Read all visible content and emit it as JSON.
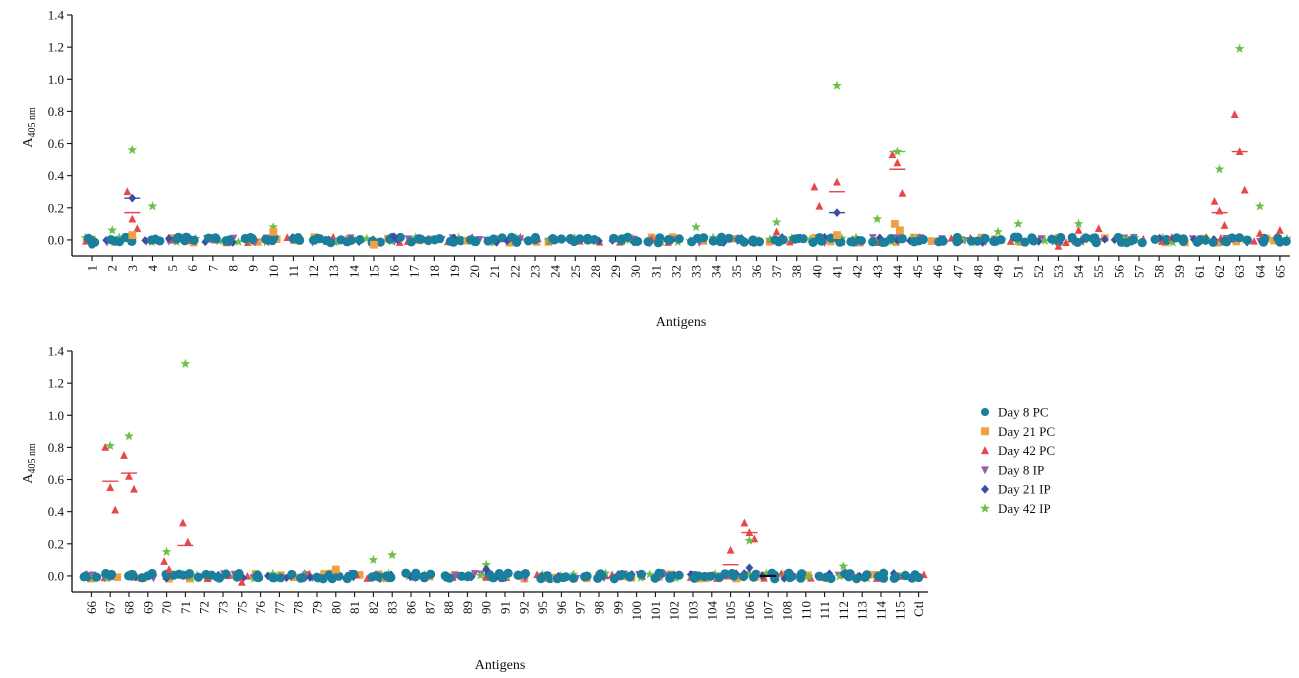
{
  "chart_data": [
    {
      "type": "scatter",
      "panel": "top",
      "xlabel": "Antigens",
      "ylabel_main": "A",
      "ylabel_sub": "405 nm",
      "ylim": [
        -0.1,
        1.4
      ],
      "yticks": [
        "0.0",
        "0.2",
        "0.4",
        "0.6",
        "0.8",
        "1.0",
        "1.2",
        "1.4"
      ],
      "categories": [
        "1",
        "2",
        "3",
        "4",
        "5",
        "6",
        "7",
        "8",
        "9",
        "10",
        "11",
        "12",
        "13",
        "14",
        "15",
        "16",
        "17",
        "18",
        "19",
        "20",
        "21",
        "22",
        "23",
        "24",
        "25",
        "28",
        "29",
        "30",
        "31",
        "32",
        "33",
        "34",
        "35",
        "36",
        "37",
        "38",
        "40",
        "41",
        "42",
        "43",
        "44",
        "45",
        "46",
        "47",
        "48",
        "49",
        "51",
        "52",
        "53",
        "54",
        "55",
        "56",
        "57",
        "58",
        "59",
        "61",
        "62",
        "63",
        "64",
        "65"
      ],
      "baseline_value": 0.0,
      "highlights": [
        {
          "category": "1",
          "series": "Day 8 PC",
          "values": [
            -0.03
          ]
        },
        {
          "category": "3",
          "series": "Day 42 IP",
          "values": [
            0.56
          ]
        },
        {
          "category": "3",
          "series": "Day 42 PC",
          "values": [
            0.3,
            0.13,
            0.07
          ]
        },
        {
          "category": "3",
          "series": "Day 21 IP",
          "values": [
            0.26
          ]
        },
        {
          "category": "3",
          "series": "Day 21 PC",
          "values": [
            0.03
          ]
        },
        {
          "category": "2",
          "series": "Day 42 IP",
          "values": [
            0.06
          ]
        },
        {
          "category": "4",
          "series": "Day 42 IP",
          "values": [
            0.21
          ]
        },
        {
          "category": "10",
          "series": "Day 42 IP",
          "values": [
            0.08
          ]
        },
        {
          "category": "10",
          "series": "Day 21 PC",
          "values": [
            0.05
          ]
        },
        {
          "category": "15",
          "series": "Day 21 PC",
          "values": [
            -0.03
          ]
        },
        {
          "category": "16",
          "series": "Day 21 IP",
          "values": [
            0.02
          ]
        },
        {
          "category": "33",
          "series": "Day 42 IP",
          "values": [
            0.08
          ]
        },
        {
          "category": "37",
          "series": "Day 42 IP",
          "values": [
            0.11
          ]
        },
        {
          "category": "37",
          "series": "Day 42 PC",
          "values": [
            0.05
          ]
        },
        {
          "category": "40",
          "series": "Day 42 PC",
          "values": [
            0.33,
            0.21
          ]
        },
        {
          "category": "41",
          "series": "Day 42 IP",
          "values": [
            0.96
          ]
        },
        {
          "category": "41",
          "series": "Day 42 PC",
          "values": [
            0.36
          ]
        },
        {
          "category": "41",
          "series": "Day 21 IP",
          "values": [
            0.17
          ]
        },
        {
          "category": "41",
          "series": "Day 21 PC",
          "values": [
            0.03
          ]
        },
        {
          "category": "43",
          "series": "Day 42 IP",
          "values": [
            0.13
          ]
        },
        {
          "category": "44",
          "series": "Day 42 IP",
          "values": [
            0.55
          ]
        },
        {
          "category": "44",
          "series": "Day 42 PC",
          "values": [
            0.53,
            0.48,
            0.29
          ]
        },
        {
          "category": "44",
          "series": "Day 21 PC",
          "values": [
            0.1,
            0.06
          ]
        },
        {
          "category": "49",
          "series": "Day 42 IP",
          "values": [
            0.05
          ]
        },
        {
          "category": "51",
          "series": "Day 42 IP",
          "values": [
            0.1
          ]
        },
        {
          "category": "53",
          "series": "Day 42 PC",
          "values": [
            -0.04
          ]
        },
        {
          "category": "54",
          "series": "Day 42 IP",
          "values": [
            0.1
          ]
        },
        {
          "category": "54",
          "series": "Day 42 PC",
          "values": [
            0.06
          ]
        },
        {
          "category": "55",
          "series": "Day 42 PC",
          "values": [
            0.07
          ]
        },
        {
          "category": "62",
          "series": "Day 42 IP",
          "values": [
            0.44
          ]
        },
        {
          "category": "62",
          "series": "Day 42 PC",
          "values": [
            0.24,
            0.18,
            0.09
          ]
        },
        {
          "category": "63",
          "series": "Day 42 IP",
          "values": [
            1.19
          ]
        },
        {
          "category": "63",
          "series": "Day 42 PC",
          "values": [
            0.78,
            0.55,
            0.31
          ]
        },
        {
          "category": "64",
          "series": "Day 42 IP",
          "values": [
            0.21
          ]
        },
        {
          "category": "64",
          "series": "Day 42 PC",
          "values": [
            0.04
          ]
        },
        {
          "category": "65",
          "series": "Day 42 PC",
          "values": [
            0.06
          ]
        }
      ],
      "mean_lines": [
        {
          "category": "3",
          "series": "Day 21 IP",
          "value": 0.26
        },
        {
          "category": "3",
          "series": "Day 42 PC",
          "value": 0.17
        },
        {
          "category": "41",
          "series": "Day 42 PC",
          "value": 0.3
        },
        {
          "category": "41",
          "series": "Day 21 IP",
          "value": 0.17
        },
        {
          "category": "44",
          "series": "Day 42 PC",
          "value": 0.44
        },
        {
          "category": "44",
          "series": "Day 42 IP",
          "value": 0.55
        },
        {
          "category": "62",
          "series": "Day 42 PC",
          "value": 0.17
        },
        {
          "category": "63",
          "series": "Day 42 PC",
          "value": 0.55
        }
      ]
    },
    {
      "type": "scatter",
      "panel": "bottom",
      "xlabel": "Antigens",
      "ylabel_main": "A",
      "ylabel_sub": "405 nm",
      "ylim": [
        -0.1,
        1.4
      ],
      "yticks": [
        "0.0",
        "0.2",
        "0.4",
        "0.6",
        "0.8",
        "1.0",
        "1.2",
        "1.4"
      ],
      "categories": [
        "66",
        "67",
        "68",
        "69",
        "70",
        "71",
        "72",
        "73",
        "75",
        "76",
        "77",
        "78",
        "79",
        "80",
        "81",
        "82",
        "83",
        "86",
        "87",
        "88",
        "89",
        "90",
        "91",
        "92",
        "95",
        "96",
        "97",
        "98",
        "99",
        "100",
        "101",
        "102",
        "103",
        "104",
        "105",
        "106",
        "107",
        "108",
        "110",
        "111",
        "112",
        "113",
        "114",
        "115",
        "Ctl"
      ],
      "baseline_value": 0.0,
      "highlights": [
        {
          "category": "67",
          "series": "Day 42 IP",
          "values": [
            0.81
          ]
        },
        {
          "category": "67",
          "series": "Day 42 PC",
          "values": [
            0.8,
            0.55,
            0.41
          ]
        },
        {
          "category": "68",
          "series": "Day 42 IP",
          "values": [
            0.87
          ]
        },
        {
          "category": "68",
          "series": "Day 42 PC",
          "values": [
            0.75,
            0.62,
            0.54
          ]
        },
        {
          "category": "70",
          "series": "Day 42 IP",
          "values": [
            0.15
          ]
        },
        {
          "category": "70",
          "series": "Day 42 PC",
          "values": [
            0.09,
            0.04
          ]
        },
        {
          "category": "71",
          "series": "Day 42 IP",
          "values": [
            1.32
          ]
        },
        {
          "category": "71",
          "series": "Day 42 PC",
          "values": [
            0.33,
            0.21
          ]
        },
        {
          "category": "75",
          "series": "Day 42 PC",
          "values": [
            -0.04
          ]
        },
        {
          "category": "80",
          "series": "Day 21 PC",
          "values": [
            0.04
          ]
        },
        {
          "category": "82",
          "series": "Day 42 IP",
          "values": [
            0.1
          ]
        },
        {
          "category": "83",
          "series": "Day 42 IP",
          "values": [
            0.13
          ]
        },
        {
          "category": "90",
          "series": "Day 42 IP",
          "values": [
            0.07
          ]
        },
        {
          "category": "90",
          "series": "Day 21 IP",
          "values": [
            0.04
          ]
        },
        {
          "category": "105",
          "series": "Day 42 PC",
          "values": [
            0.16
          ]
        },
        {
          "category": "106",
          "series": "Day 42 PC",
          "values": [
            0.33,
            0.27,
            0.23
          ]
        },
        {
          "category": "106",
          "series": "Day 42 IP",
          "values": [
            0.22
          ]
        },
        {
          "category": "106",
          "series": "Day 21 IP",
          "values": [
            0.05
          ]
        },
        {
          "category": "112",
          "series": "Day 42 IP",
          "values": [
            0.06
          ]
        }
      ],
      "mean_lines": [
        {
          "category": "67",
          "series": "Day 42 PC",
          "value": 0.59
        },
        {
          "category": "68",
          "series": "Day 42 PC",
          "value": 0.64
        },
        {
          "category": "71",
          "series": "Day 42 PC",
          "value": 0.19
        },
        {
          "category": "105",
          "series": "Day 42 PC",
          "value": 0.07
        },
        {
          "category": "106",
          "series": "Day 42 PC",
          "value": 0.27
        },
        {
          "category": "107",
          "series": "Day 8 PC",
          "value": 0.0
        }
      ]
    }
  ],
  "legend": {
    "placement": "right",
    "entries": [
      {
        "label": "Day 8 PC",
        "marker": "circle",
        "color": "#1a7f9c"
      },
      {
        "label": "Day 21 PC",
        "marker": "square",
        "color": "#f0a040"
      },
      {
        "label": "Day 42 PC",
        "marker": "triangle-up",
        "color": "#e8474a"
      },
      {
        "label": "Day 8 IP",
        "marker": "triangle-down",
        "color": "#9b59b6"
      },
      {
        "label": "Day 21 IP",
        "marker": "diamond",
        "color": "#3a4fa0"
      },
      {
        "label": "Day 42 IP",
        "marker": "star",
        "color": "#6cc04a"
      }
    ]
  }
}
